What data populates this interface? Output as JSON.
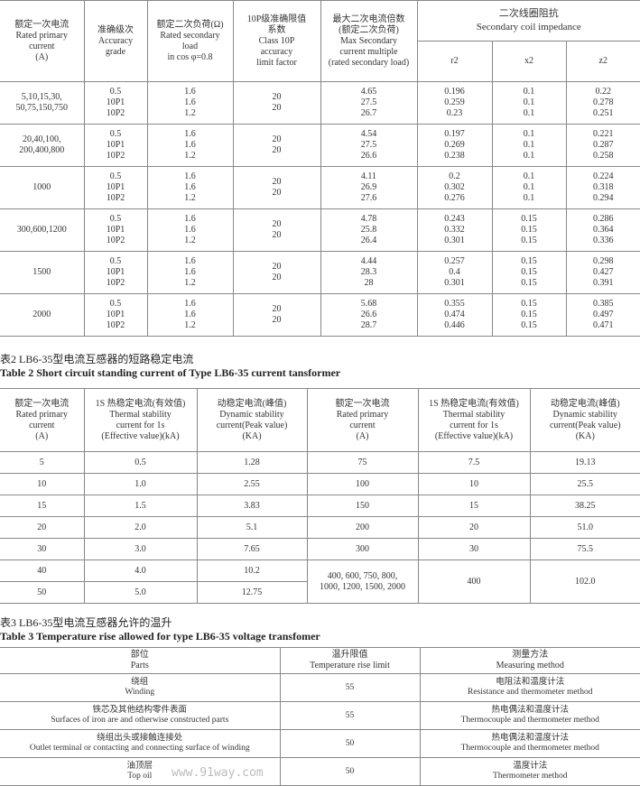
{
  "table1": {
    "headers": [
      "额定一次电流\nRated primary\ncurrent\n(A)",
      "准确级次\nAccuracy\ngrade",
      "额定二次负荷(Ω)\nRated secondary\nload\nin cos φ=0.8",
      "10P级准确限值\n系数\nClass 10P\naccuracy\nlimit factor",
      "最大二次电流倍数\n(额定二次负荷)\nMax Secondary\ncurrent multiple\n(rated secondary load)",
      "二次线圈阻抗\nSecondary coil impedance"
    ],
    "sub_headers": [
      "r2",
      "x2",
      "z2"
    ],
    "rows": [
      {
        "current": "5,10,15,30,\n50,75,150,750",
        "grade": "0.5\n10P1\n10P2",
        "load": "1.6\n1.6\n1.2",
        "factor": "20\n20",
        "multiple": "4.65\n27.5\n26.7",
        "r2": "0.196\n0.259\n0.23",
        "x2": "0.1\n0.1\n0.1",
        "z2": "0.22\n0.278\n0.251"
      },
      {
        "current": "20,40,100,\n200,400,800",
        "grade": "0.5\n10P1\n10P2",
        "load": "1.6\n1.6\n1.2",
        "factor": "20\n20",
        "multiple": "4.54\n27.5\n26.6",
        "r2": "0.197\n0.269\n0.238",
        "x2": "0.1\n0.1\n0.1",
        "z2": "0.221\n0.287\n0.258"
      },
      {
        "current": "1000",
        "grade": "0.5\n10P1\n10P2",
        "load": "1.6\n1.6\n1.2",
        "factor": "20\n20",
        "multiple": "4.11\n26.9\n27.6",
        "r2": "0.2\n0.302\n0.276",
        "x2": "0.1\n0.1\n0.1",
        "z2": "0.224\n0.318\n0.294"
      },
      {
        "current": "300,600,1200",
        "grade": "0.5\n10P1\n10P2",
        "load": "1.6\n1.6\n1.2",
        "factor": "20\n20",
        "multiple": "4.78\n25.8\n26.4",
        "r2": "0.243\n0.332\n0.301",
        "x2": "0.15\n0.15\n0.15",
        "z2": "0.286\n0.364\n0.336"
      },
      {
        "current": "1500",
        "grade": "0.5\n10P1\n10P2",
        "load": "1.6\n1.6\n1.2",
        "factor": "20\n20",
        "multiple": "4.44\n28.3\n28",
        "r2": "0.257\n0.4\n0.301",
        "x2": "0.15\n0.15\n0.15",
        "z2": "0.298\n0.427\n0.391"
      },
      {
        "current": "2000",
        "grade": "0.5\n10P1\n10P2",
        "load": "1.6\n1.6\n1.2",
        "factor": "20\n20",
        "multiple": "5.68\n26.6\n28.7",
        "r2": "0.355\n0.474\n0.446",
        "x2": "0.15\n0.15\n0.15",
        "z2": "0.385\n0.497\n0.471"
      }
    ]
  },
  "table2": {
    "title_cn": "表2 LB6-35型电流互感器的短路稳定电流",
    "title_en": "Table 2 Short circuit standing current of Type LB6-35 current tansformer",
    "headers": [
      "额定一次电流\nRated primary\ncurrent\n(A)",
      "1S 热稳定电流(有效值)\nThermal stability\ncurrent for 1s\n(Effective value)(kA)",
      "动稳定电流(峰值)\nDynamic stability\ncurrent(Peak value)\n(KA)",
      "额定一次电流\nRated primary\ncurrent\n(A)",
      "1S 热稳定电流(有效值)\nThermal stability\ncurrent for 1s\n(Effective value)(kA)",
      "动稳定电流(峰值)\nDynamic stability\ncurrent(Peak value)\n(KA)"
    ],
    "left_rows": [
      [
        "5",
        "0.5",
        "1.28"
      ],
      [
        "10",
        "1.0",
        "2.55"
      ],
      [
        "15",
        "1.5",
        "3.83"
      ],
      [
        "20",
        "2.0",
        "5.1"
      ],
      [
        "30",
        "3.0",
        "7.65"
      ],
      [
        "40",
        "4.0",
        "10.2"
      ],
      [
        "50",
        "5.0",
        "12.75"
      ]
    ],
    "right_rows": [
      [
        "75",
        "7.5",
        "19.13"
      ],
      [
        "100",
        "10",
        "25.5"
      ],
      [
        "150",
        "15",
        "38.25"
      ],
      [
        "200",
        "20",
        "51.0"
      ],
      [
        "300",
        "30",
        "75.5"
      ],
      [
        "400, 600, 750, 800,\n1000, 1200, 1500, 2000",
        "400",
        "102.0"
      ]
    ]
  },
  "table3": {
    "title_cn": "表3 LB6-35型电流互感器允许的温升",
    "title_en": "Table 3 Temperature rise allowed for type LB6-35 voltage transfomer",
    "headers": [
      "部位\nParts",
      "温升限值\nTemperature rise limit",
      "测量方法\nMeasuring method"
    ],
    "rows": [
      [
        "绕组\nWinding",
        "55",
        "电阻法和温度计法\nResistance and thermometer method"
      ],
      [
        "铁芯及其他结构零件表面\nSurfaces of iron are and otherwise constructed parts",
        "55",
        "热电偶法和温度计法\nThermocouple and  thermometer method"
      ],
      [
        "绕组出头或接触连接处\nOutlet terminal or contacting and connecting surface of winding",
        "50",
        "热电偶法和温度计法\nThermocouple and  thermometer method"
      ],
      [
        "油顶层\nTop oil",
        "50",
        "温度计法\nThermometer method"
      ]
    ]
  },
  "watermark": "www.91way.com"
}
